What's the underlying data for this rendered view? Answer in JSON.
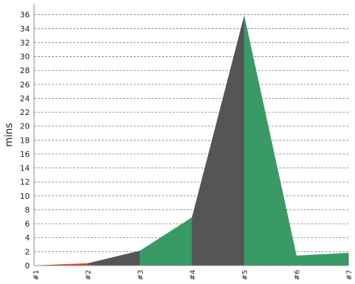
{
  "chart_data": {
    "type": "area",
    "categories": [
      "#1",
      "#2",
      "#3",
      "#4",
      "#5",
      "#6",
      "#7"
    ],
    "values": [
      0,
      0.3,
      2.1,
      6.9,
      35.8,
      1.4,
      1.8
    ],
    "ylabel": "mins",
    "xlabel": "",
    "title": "",
    "ylim": [
      0,
      37.6
    ],
    "yticks": [
      0,
      2,
      4,
      6,
      8,
      10,
      12,
      14,
      16,
      18,
      20,
      22,
      24,
      26,
      28,
      30,
      32,
      34,
      36
    ],
    "grid": true,
    "segment_colors": [
      "#e53a22",
      "#555555",
      "#3a9a66",
      "#555555",
      "#3a9a66",
      "#3a9a66"
    ],
    "colors": {
      "passed": "#3a9a66",
      "failed": "#e53a22",
      "other": "#555555"
    }
  }
}
